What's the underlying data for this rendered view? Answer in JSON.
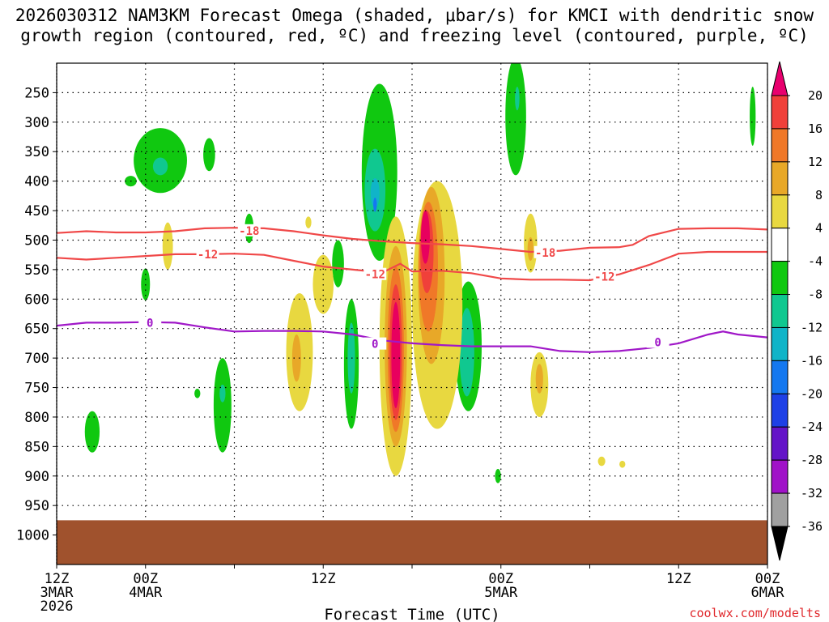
{
  "chart_data": {
    "type": "heatmap",
    "title_lines": [
      "2026030312 NAM3KM Forecast Omega (shaded, μbar/s) for KMCI with dendritic snow",
      "growth region (contoured, red, ºC) and freezing level (contoured, purple, ºC)"
    ],
    "xlabel": "Forecast Time (UTC)",
    "credit": "coolwx.com/modelts",
    "x_unit": "forecast hour",
    "x_range": [
      0,
      48
    ],
    "x_ticks": [
      {
        "hour": 0,
        "lines": [
          "12Z",
          "3MAR",
          "2026"
        ]
      },
      {
        "hour": 6,
        "lines": [
          "00Z",
          "4MAR"
        ]
      },
      {
        "hour": 18,
        "lines": [
          "12Z"
        ]
      },
      {
        "hour": 30,
        "lines": [
          "00Z",
          "5MAR"
        ]
      },
      {
        "hour": 42,
        "lines": [
          "12Z"
        ]
      },
      {
        "hour": 48,
        "lines": [
          "00Z",
          "6MAR"
        ]
      }
    ],
    "x_tick_hours": [
      0,
      6,
      12,
      18,
      24,
      30,
      36,
      42,
      48
    ],
    "y_unit": "hPa",
    "y_range": [
      1050,
      200
    ],
    "y_ticks": [
      250,
      300,
      350,
      400,
      450,
      500,
      550,
      600,
      650,
      700,
      750,
      800,
      850,
      900,
      950,
      1000
    ],
    "ground_level_hPa": 975,
    "colorbar": {
      "labels": [
        "20",
        "16",
        "12",
        "8",
        "4",
        "-4",
        "-8",
        "-12",
        "-16",
        "-20",
        "-24",
        "-28",
        "-32",
        "-36"
      ],
      "colors": [
        "#e8005e",
        "#f0403a",
        "#f07828",
        "#e8a828",
        "#e8d840",
        "#ffffff",
        "#10c810",
        "#10c890",
        "#10b4c8",
        "#1478f0",
        "#1e40e6",
        "#6414c8",
        "#a012c8",
        "#a0a0a0"
      ],
      "top_arrow_color": "#e8006e",
      "bottom_arrow_color": "#000000"
    },
    "omega_regions": [
      {
        "category": "-8",
        "color": "#10c810",
        "center": [
          7.0,
          365
        ],
        "extent": [
          1.8,
          55
        ]
      },
      {
        "category": "-12",
        "color": "#10c890",
        "center": [
          7.0,
          375
        ],
        "extent": [
          0.5,
          15
        ]
      },
      {
        "category": "-8",
        "color": "#10c810",
        "center": [
          10.3,
          355
        ],
        "extent": [
          0.4,
          28
        ]
      },
      {
        "category": "-8",
        "color": "#10c810",
        "center": [
          5.0,
          400
        ],
        "extent": [
          0.4,
          9
        ]
      },
      {
        "category": "-8",
        "color": "#10c810",
        "center": [
          6.0,
          575
        ],
        "extent": [
          0.3,
          27
        ]
      },
      {
        "category": "-8",
        "color": "#10c810",
        "center": [
          13.0,
          480
        ],
        "extent": [
          0.3,
          25
        ]
      },
      {
        "category": "-8",
        "color": "#10c810",
        "center": [
          2.4,
          825
        ],
        "extent": [
          0.5,
          35
        ]
      },
      {
        "category": "-8",
        "color": "#10c810",
        "center": [
          11.2,
          780
        ],
        "extent": [
          0.6,
          80
        ]
      },
      {
        "category": "-12",
        "color": "#10c890",
        "center": [
          11.2,
          760
        ],
        "extent": [
          0.2,
          15
        ]
      },
      {
        "category": "-8",
        "color": "#10c810",
        "center": [
          9.5,
          760
        ],
        "extent": [
          0.2,
          8
        ]
      },
      {
        "category": "-8",
        "color": "#10c810",
        "center": [
          21.8,
          385
        ],
        "extent": [
          1.2,
          150
        ]
      },
      {
        "category": "-12",
        "color": "#10c890",
        "center": [
          21.5,
          415
        ],
        "extent": [
          0.7,
          70
        ]
      },
      {
        "category": "-16",
        "color": "#10b4c8",
        "center": [
          21.5,
          420
        ],
        "extent": [
          0.3,
          25
        ]
      },
      {
        "category": "-20",
        "color": "#1478f0",
        "center": [
          21.5,
          440
        ],
        "extent": [
          0.12,
          12
        ]
      },
      {
        "category": "-8",
        "color": "#10c810",
        "center": [
          19.0,
          540
        ],
        "extent": [
          0.4,
          40
        ]
      },
      {
        "category": "-8",
        "color": "#10c810",
        "center": [
          19.9,
          710
        ],
        "extent": [
          0.5,
          110
        ]
      },
      {
        "category": "-12",
        "color": "#10c890",
        "center": [
          19.9,
          700
        ],
        "extent": [
          0.25,
          60
        ]
      },
      {
        "category": "-8",
        "color": "#10c810",
        "center": [
          25.5,
          520
        ],
        "extent": [
          0.2,
          30
        ]
      },
      {
        "category": "-8",
        "color": "#10c810",
        "center": [
          27.8,
          680
        ],
        "extent": [
          0.9,
          110
        ]
      },
      {
        "category": "-12",
        "color": "#10c890",
        "center": [
          27.7,
          690
        ],
        "extent": [
          0.5,
          75
        ]
      },
      {
        "category": "-8",
        "color": "#10c810",
        "center": [
          29.8,
          900
        ],
        "extent": [
          0.2,
          12
        ]
      },
      {
        "category": "-8",
        "color": "#10c810",
        "center": [
          31.0,
          290
        ],
        "extent": [
          0.7,
          100
        ]
      },
      {
        "category": "-12",
        "color": "#10c890",
        "center": [
          31.1,
          260
        ],
        "extent": [
          0.15,
          20
        ]
      },
      {
        "category": "-8",
        "color": "#10c810",
        "center": [
          47.0,
          290
        ],
        "extent": [
          0.2,
          50
        ]
      },
      {
        "category": "4",
        "color": "#e8d840",
        "center": [
          7.5,
          510
        ],
        "extent": [
          0.35,
          40
        ]
      },
      {
        "category": "4",
        "color": "#e8d840",
        "center": [
          16.4,
          690
        ],
        "extent": [
          0.9,
          100
        ]
      },
      {
        "category": "8",
        "color": "#e8a828",
        "center": [
          16.2,
          700
        ],
        "extent": [
          0.3,
          40
        ]
      },
      {
        "category": "4",
        "color": "#e8d840",
        "center": [
          18.0,
          575
        ],
        "extent": [
          0.7,
          50
        ]
      },
      {
        "category": "4",
        "color": "#e8d840",
        "center": [
          17.0,
          470
        ],
        "extent": [
          0.2,
          10
        ]
      },
      {
        "category": "4",
        "color": "#e8d840",
        "center": [
          22.9,
          680
        ],
        "extent": [
          1.1,
          220
        ]
      },
      {
        "category": "8",
        "color": "#e8a828",
        "center": [
          22.9,
          680
        ],
        "extent": [
          0.75,
          170
        ]
      },
      {
        "category": "12",
        "color": "#f07828",
        "center": [
          22.9,
          685
        ],
        "extent": [
          0.55,
          140
        ]
      },
      {
        "category": "16",
        "color": "#f0403a",
        "center": [
          22.9,
          690
        ],
        "extent": [
          0.42,
          115
        ]
      },
      {
        "category": "20",
        "color": "#e8005e",
        "center": [
          22.9,
          695
        ],
        "extent": [
          0.3,
          90
        ]
      },
      {
        "category": "4",
        "color": "#e8d840",
        "center": [
          25.7,
          610
        ],
        "extent": [
          1.7,
          210
        ]
      },
      {
        "category": "8",
        "color": "#e8a828",
        "center": [
          25.3,
          560
        ],
        "extent": [
          0.9,
          150
        ]
      },
      {
        "category": "12",
        "color": "#f07828",
        "center": [
          25.1,
          545
        ],
        "extent": [
          0.65,
          110
        ]
      },
      {
        "category": "16",
        "color": "#f0403a",
        "center": [
          25.0,
          520
        ],
        "extent": [
          0.45,
          70
        ]
      },
      {
        "category": "20",
        "color": "#e8005e",
        "center": [
          24.9,
          495
        ],
        "extent": [
          0.3,
          45
        ]
      },
      {
        "category": "4",
        "color": "#e8d840",
        "center": [
          32.0,
          505
        ],
        "extent": [
          0.45,
          50
        ]
      },
      {
        "category": "8",
        "color": "#e8a828",
        "center": [
          32.0,
          515
        ],
        "extent": [
          0.2,
          20
        ]
      },
      {
        "category": "4",
        "color": "#e8d840",
        "center": [
          32.6,
          745
        ],
        "extent": [
          0.6,
          55
        ]
      },
      {
        "category": "8",
        "color": "#e8a828",
        "center": [
          32.6,
          735
        ],
        "extent": [
          0.25,
          25
        ]
      },
      {
        "category": "4",
        "color": "#e8d840",
        "center": [
          36.8,
          875
        ],
        "extent": [
          0.25,
          8
        ]
      },
      {
        "category": "4",
        "color": "#e8d840",
        "center": [
          38.2,
          880
        ],
        "extent": [
          0.2,
          6
        ]
      }
    ],
    "contours": [
      {
        "name": "dendritic -18C",
        "label": "-18",
        "color": "#f04848",
        "points": [
          [
            0,
            488
          ],
          [
            2,
            485
          ],
          [
            4,
            487
          ],
          [
            6,
            487
          ],
          [
            8,
            485
          ],
          [
            10,
            480
          ],
          [
            12,
            479
          ],
          [
            14,
            480
          ],
          [
            16,
            485
          ],
          [
            18,
            492
          ],
          [
            20,
            498
          ],
          [
            22,
            502
          ],
          [
            24,
            505
          ],
          [
            26,
            507
          ],
          [
            28,
            510
          ],
          [
            30,
            515
          ],
          [
            32,
            520
          ],
          [
            34,
            518
          ],
          [
            36,
            513
          ],
          [
            38,
            512
          ],
          [
            38.9,
            508
          ],
          [
            40,
            493
          ],
          [
            42,
            481
          ],
          [
            44,
            480
          ],
          [
            46,
            480
          ],
          [
            48,
            482
          ]
        ],
        "label_at": [
          [
            13,
            484
          ],
          [
            33,
            521
          ]
        ]
      },
      {
        "name": "dendritic -12C",
        "label": "-12",
        "color": "#f04848",
        "points": [
          [
            0,
            530
          ],
          [
            2,
            533
          ],
          [
            4,
            530
          ],
          [
            6,
            527
          ],
          [
            8,
            524
          ],
          [
            10,
            524
          ],
          [
            12,
            523
          ],
          [
            14,
            525
          ],
          [
            16,
            535
          ],
          [
            18,
            545
          ],
          [
            20,
            550
          ],
          [
            22,
            555
          ],
          [
            23.2,
            540
          ],
          [
            24,
            553
          ],
          [
            26,
            552
          ],
          [
            28,
            556
          ],
          [
            30,
            565
          ],
          [
            32,
            567
          ],
          [
            34,
            567
          ],
          [
            36,
            568
          ],
          [
            37,
            563
          ],
          [
            38,
            558
          ],
          [
            40,
            542
          ],
          [
            42,
            523
          ],
          [
            44,
            520
          ],
          [
            46,
            520
          ],
          [
            48,
            520
          ]
        ],
        "label_at": [
          [
            10.2,
            524
          ],
          [
            21.5,
            558
          ],
          [
            37,
            562
          ]
        ]
      },
      {
        "name": "freezing level 0C",
        "label": "0",
        "color": "#a018c8",
        "points": [
          [
            0,
            645
          ],
          [
            2,
            640
          ],
          [
            4,
            640
          ],
          [
            6,
            639
          ],
          [
            8,
            640
          ],
          [
            10,
            648
          ],
          [
            12,
            655
          ],
          [
            14,
            654
          ],
          [
            16,
            654
          ],
          [
            18,
            655
          ],
          [
            20,
            660
          ],
          [
            22,
            670
          ],
          [
            24,
            675
          ],
          [
            26,
            678
          ],
          [
            28,
            680
          ],
          [
            30,
            680
          ],
          [
            32,
            680
          ],
          [
            34,
            688
          ],
          [
            36,
            690
          ],
          [
            38,
            688
          ],
          [
            40,
            683
          ],
          [
            42,
            675
          ],
          [
            44,
            660
          ],
          [
            45,
            655
          ],
          [
            46,
            660
          ],
          [
            48,
            665
          ]
        ],
        "label_at": [
          [
            6.3,
            640
          ],
          [
            40.6,
            673
          ],
          [
            21.5,
            676
          ]
        ]
      }
    ]
  }
}
